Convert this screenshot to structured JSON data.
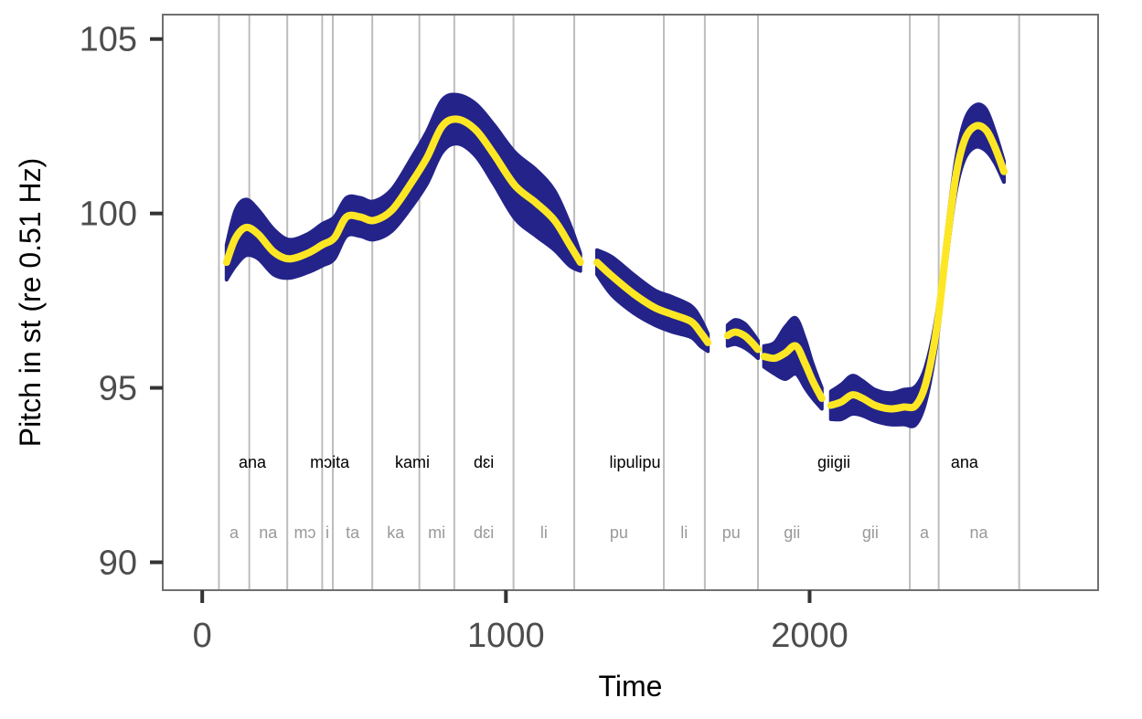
{
  "chart_data": {
    "type": "line",
    "xlabel": "Time",
    "ylabel": "Pitch in st (re 0.51 Hz)",
    "xlim": [
      -130,
      2950
    ],
    "ylim": [
      89.2,
      105.7
    ],
    "x_ticks": [
      0,
      1000,
      2000
    ],
    "y_ticks": [
      90,
      95,
      100,
      105
    ],
    "grid": false,
    "colors": {
      "band": "#23238a",
      "line": "#fde725",
      "boundary": "#bdbdbd",
      "frame": "#707070"
    },
    "boundaries": [
      55,
      155,
      280,
      395,
      430,
      560,
      715,
      830,
      1025,
      1225,
      1520,
      1655,
      1830,
      2330,
      2425,
      2690
    ],
    "words": [
      {
        "text": "ana",
        "x": 165
      },
      {
        "text": "mɔita",
        "x": 420
      },
      {
        "text": "kami",
        "x": 692
      },
      {
        "text": "dɛi",
        "x": 927
      },
      {
        "text": "lipulipu",
        "x": 1425
      },
      {
        "text": "giigii",
        "x": 2080
      },
      {
        "text": "ana",
        "x": 2510
      }
    ],
    "syllables": [
      {
        "text": "a",
        "x": 105
      },
      {
        "text": "na",
        "x": 217
      },
      {
        "text": "mɔ",
        "x": 338
      },
      {
        "text": "i",
        "x": 412
      },
      {
        "text": "ta",
        "x": 495
      },
      {
        "text": "ka",
        "x": 637
      },
      {
        "text": "mi",
        "x": 772
      },
      {
        "text": "dɛi",
        "x": 927
      },
      {
        "text": "li",
        "x": 1125
      },
      {
        "text": "pu",
        "x": 1372
      },
      {
        "text": "li",
        "x": 1587
      },
      {
        "text": "pu",
        "x": 1742
      },
      {
        "text": "gii",
        "x": 1942
      },
      {
        "text": "gii",
        "x": 2200
      },
      {
        "text": "a",
        "x": 2378
      },
      {
        "text": "na",
        "x": 2557
      }
    ],
    "series": [
      {
        "segments": [
          {
            "x": [
              80,
              110,
              145,
              185,
              235,
              285,
              345,
              395,
              435,
              475,
              520,
              565,
              625,
              690,
              740,
              790,
              840,
              900,
              960,
              1030,
              1100,
              1160,
              1210,
              1245
            ],
            "y": [
              98.6,
              99.3,
              99.6,
              99.4,
              98.9,
              98.7,
              98.85,
              99.1,
              99.3,
              99.9,
              99.9,
              99.8,
              100.1,
              100.9,
              101.6,
              102.5,
              102.7,
              102.4,
              101.7,
              100.8,
              100.3,
              99.8,
              99.1,
              98.6
            ],
            "width": [
              0.5,
              0.8,
              0.8,
              0.7,
              0.65,
              0.55,
              0.55,
              0.6,
              0.6,
              0.55,
              0.55,
              0.55,
              0.6,
              0.7,
              0.75,
              0.75,
              0.7,
              0.75,
              0.85,
              0.95,
              0.95,
              0.85,
              0.6,
              0.25
            ]
          },
          {
            "x": [
              1300,
              1350,
              1420,
              1490,
              1550,
              1610,
              1640,
              1665
            ],
            "y": [
              98.6,
              98.2,
              97.7,
              97.3,
              97.1,
              96.9,
              96.6,
              96.3
            ],
            "width": [
              0.35,
              0.55,
              0.55,
              0.5,
              0.5,
              0.45,
              0.4,
              0.25
            ]
          },
          {
            "x": [
              1730,
              1755,
              1785,
              1810,
              1830
            ],
            "y": [
              96.5,
              96.6,
              96.5,
              96.3,
              96.1
            ],
            "width": [
              0.3,
              0.35,
              0.35,
              0.3,
              0.25
            ]
          },
          {
            "x": [
              1850,
              1885,
              1920,
              1955,
              1985,
              2010,
              2040
            ],
            "y": [
              95.9,
              95.85,
              96.0,
              96.2,
              95.7,
              95.2,
              94.7
            ],
            "width": [
              0.3,
              0.45,
              0.75,
              0.8,
              0.7,
              0.5,
              0.3
            ]
          },
          {
            "x": [
              2070,
              2105,
              2140,
              2175,
              2215,
              2265,
              2310,
              2350,
              2385,
              2420,
              2450,
              2480,
              2510,
              2545,
              2580,
              2610,
              2640
            ],
            "y": [
              94.5,
              94.6,
              94.8,
              94.7,
              94.5,
              94.4,
              94.45,
              94.5,
              95.2,
              96.8,
              99.0,
              101.0,
              102.1,
              102.5,
              102.4,
              101.9,
              101.2
            ],
            "width": [
              0.4,
              0.5,
              0.55,
              0.5,
              0.45,
              0.45,
              0.5,
              0.55,
              0.5,
              0.4,
              0.4,
              0.45,
              0.55,
              0.6,
              0.6,
              0.45,
              0.3
            ]
          }
        ]
      }
    ]
  }
}
